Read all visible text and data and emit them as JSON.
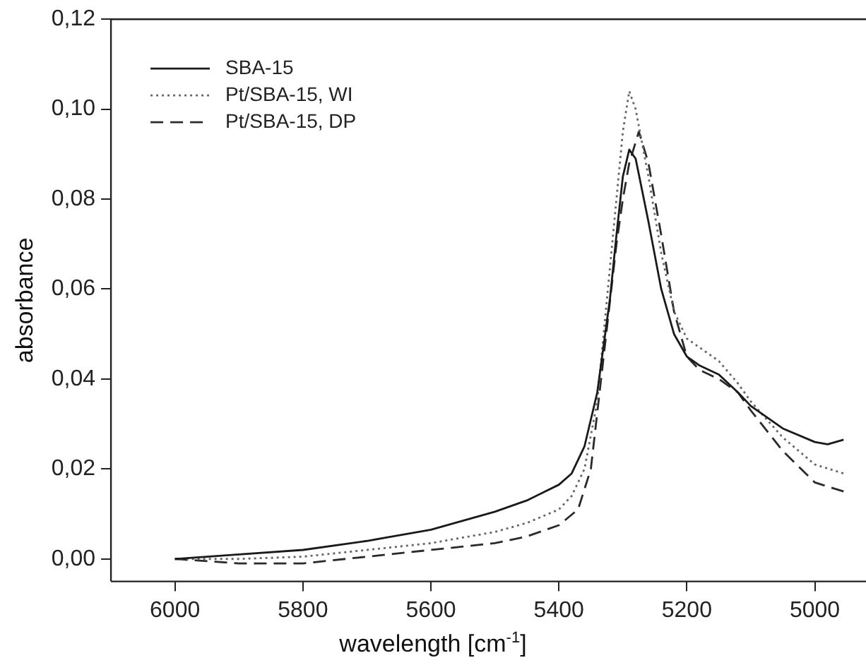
{
  "chart_data": {
    "type": "line",
    "xlabel": "wavelength [cm$^{-1}$]",
    "ylabel": "absorbance",
    "xlim": [
      6100,
      4920
    ],
    "xticks": [
      6000,
      5800,
      5600,
      5400,
      5200,
      5000
    ],
    "ylim": [
      -0.005,
      0.12
    ],
    "yticks": [
      {
        "value": 0,
        "label": "0,00"
      },
      {
        "value": 0.02,
        "label": "0,02"
      },
      {
        "value": 0.04,
        "label": "0,04"
      },
      {
        "value": 0.06,
        "label": "0,06"
      },
      {
        "value": 0.08,
        "label": "0,08"
      },
      {
        "value": 0.1,
        "label": "0,10"
      },
      {
        "value": 0.12,
        "label": "0,12"
      }
    ],
    "grid": false,
    "legend": "top left",
    "marker": "none",
    "series": [
      {
        "name": "SBA-15",
        "color": "#1a1a1a",
        "line_style": "solid",
        "x": [
          6000,
          5900,
          5800,
          5700,
          5600,
          5500,
          5450,
          5400,
          5380,
          5360,
          5340,
          5320,
          5310,
          5300,
          5290,
          5280,
          5260,
          5240,
          5220,
          5200,
          5180,
          5150,
          5120,
          5100,
          5050,
          5000,
          4980,
          4955
        ],
        "values": [
          0,
          0.001,
          0.002,
          0.004,
          0.0065,
          0.0105,
          0.013,
          0.0165,
          0.019,
          0.025,
          0.037,
          0.058,
          0.072,
          0.085,
          0.091,
          0.089,
          0.075,
          0.06,
          0.05,
          0.045,
          0.043,
          0.041,
          0.037,
          0.034,
          0.029,
          0.026,
          0.0255,
          0.0265
        ]
      },
      {
        "name": "Pt/SBA-15, WI",
        "color": "#666666",
        "line_style": "dotted",
        "x": [
          6000,
          5900,
          5800,
          5700,
          5600,
          5500,
          5450,
          5400,
          5380,
          5360,
          5340,
          5320,
          5310,
          5300,
          5290,
          5280,
          5260,
          5240,
          5220,
          5200,
          5180,
          5150,
          5120,
          5100,
          5050,
          5000,
          4955
        ],
        "values": [
          0,
          0,
          0.0005,
          0.002,
          0.0035,
          0.006,
          0.008,
          0.011,
          0.014,
          0.02,
          0.035,
          0.065,
          0.08,
          0.095,
          0.104,
          0.1,
          0.085,
          0.068,
          0.055,
          0.049,
          0.047,
          0.044,
          0.039,
          0.035,
          0.027,
          0.021,
          0.019
        ]
      },
      {
        "name": "Pt/SBA-15, DP",
        "color": "#2a2a2a",
        "line_style": "dashed",
        "x": [
          6000,
          5950,
          5900,
          5800,
          5700,
          5600,
          5500,
          5450,
          5400,
          5370,
          5350,
          5330,
          5310,
          5300,
          5290,
          5275,
          5260,
          5240,
          5220,
          5200,
          5180,
          5150,
          5120,
          5100,
          5050,
          5000,
          4955
        ],
        "values": [
          0,
          -0.0005,
          -0.001,
          -0.001,
          0.0005,
          0.002,
          0.0035,
          0.005,
          0.0075,
          0.011,
          0.02,
          0.045,
          0.07,
          0.08,
          0.088,
          0.095,
          0.088,
          0.072,
          0.055,
          0.045,
          0.042,
          0.04,
          0.037,
          0.033,
          0.024,
          0.017,
          0.015
        ]
      }
    ]
  }
}
